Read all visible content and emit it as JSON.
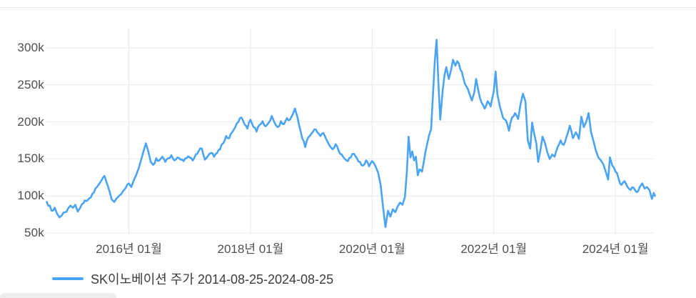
{
  "chart_data": {
    "type": "line",
    "title": "",
    "legend": {
      "label": "SK이노베이션 주가 2014-08-25-2024-08-25",
      "position": "bottom-left"
    },
    "colors": {
      "line": "#4BA4F2",
      "grid": "#e9e9e9",
      "tick_text": "#4f4f4f",
      "legend_text": "#3c3c3c"
    },
    "grid": true,
    "x_range": [
      2014.648,
      2024.66
    ],
    "y_range": [
      50000,
      325000
    ],
    "x_ticks": [
      {
        "t": 2016,
        "label": "2016년 01월"
      },
      {
        "t": 2018,
        "label": "2018년 01월"
      },
      {
        "t": 2020,
        "label": "2020년 01월"
      },
      {
        "t": 2022,
        "label": "2022년 01월"
      },
      {
        "t": 2024,
        "label": "2024년 01월"
      }
    ],
    "y_ticks": [
      {
        "v": 50000,
        "label": "50k"
      },
      {
        "v": 100000,
        "label": "100k"
      },
      {
        "v": 150000,
        "label": "150k"
      },
      {
        "v": 200000,
        "label": "200k"
      },
      {
        "v": 250000,
        "label": "250k"
      },
      {
        "v": 300000,
        "label": "300k"
      }
    ],
    "series": [
      {
        "name": "SK이노베이션 주가 2014-08-25-2024-08-25",
        "points": [
          [
            2014.65,
            92000
          ],
          [
            2014.7,
            87000
          ],
          [
            2014.73,
            80000
          ],
          [
            2014.78,
            84000
          ],
          [
            2014.82,
            76000
          ],
          [
            2014.86,
            71000
          ],
          [
            2014.9,
            74000
          ],
          [
            2014.95,
            78000
          ],
          [
            2015.0,
            83000
          ],
          [
            2015.04,
            87000
          ],
          [
            2015.08,
            84000
          ],
          [
            2015.12,
            88000
          ],
          [
            2015.16,
            79000
          ],
          [
            2015.2,
            84000
          ],
          [
            2015.25,
            90000
          ],
          [
            2015.3,
            93000
          ],
          [
            2015.35,
            97000
          ],
          [
            2015.4,
            103000
          ],
          [
            2015.45,
            110000
          ],
          [
            2015.5,
            115000
          ],
          [
            2015.55,
            121000
          ],
          [
            2015.6,
            127000
          ],
          [
            2015.64,
            117000
          ],
          [
            2015.68,
            107000
          ],
          [
            2015.72,
            95000
          ],
          [
            2015.76,
            92000
          ],
          [
            2015.8,
            97000
          ],
          [
            2015.85,
            101000
          ],
          [
            2015.9,
            106000
          ],
          [
            2015.95,
            111000
          ],
          [
            2016.0,
            117000
          ],
          [
            2016.04,
            112000
          ],
          [
            2016.08,
            121000
          ],
          [
            2016.12,
            128000
          ],
          [
            2016.16,
            137000
          ],
          [
            2016.2,
            148000
          ],
          [
            2016.24,
            160000
          ],
          [
            2016.28,
            171000
          ],
          [
            2016.32,
            160000
          ],
          [
            2016.36,
            146000
          ],
          [
            2016.4,
            142000
          ],
          [
            2016.45,
            151000
          ],
          [
            2016.5,
            148000
          ],
          [
            2016.55,
            153000
          ],
          [
            2016.6,
            146000
          ],
          [
            2016.65,
            151000
          ],
          [
            2016.7,
            155000
          ],
          [
            2016.75,
            148000
          ],
          [
            2016.8,
            152000
          ],
          [
            2016.85,
            149000
          ],
          [
            2016.9,
            147000
          ],
          [
            2016.95,
            151000
          ],
          [
            2017.0,
            152000
          ],
          [
            2017.05,
            148000
          ],
          [
            2017.1,
            156000
          ],
          [
            2017.15,
            161000
          ],
          [
            2017.2,
            164000
          ],
          [
            2017.25,
            149000
          ],
          [
            2017.3,
            154000
          ],
          [
            2017.35,
            158000
          ],
          [
            2017.4,
            153000
          ],
          [
            2017.45,
            158000
          ],
          [
            2017.5,
            163000
          ],
          [
            2017.55,
            171000
          ],
          [
            2017.6,
            181000
          ],
          [
            2017.65,
            178000
          ],
          [
            2017.7,
            186000
          ],
          [
            2017.75,
            193000
          ],
          [
            2017.8,
            200000
          ],
          [
            2017.85,
            206000
          ],
          [
            2017.9,
            197000
          ],
          [
            2017.95,
            191000
          ],
          [
            2018.0,
            203000
          ],
          [
            2018.05,
            193000
          ],
          [
            2018.1,
            187000
          ],
          [
            2018.15,
            196000
          ],
          [
            2018.2,
            201000
          ],
          [
            2018.25,
            194000
          ],
          [
            2018.3,
            199000
          ],
          [
            2018.35,
            208000
          ],
          [
            2018.4,
            198000
          ],
          [
            2018.45,
            193000
          ],
          [
            2018.5,
            201000
          ],
          [
            2018.55,
            197000
          ],
          [
            2018.6,
            205000
          ],
          [
            2018.65,
            203000
          ],
          [
            2018.7,
            211000
          ],
          [
            2018.73,
            218000
          ],
          [
            2018.77,
            207000
          ],
          [
            2018.8,
            195000
          ],
          [
            2018.85,
            178000
          ],
          [
            2018.9,
            166000
          ],
          [
            2018.95,
            179000
          ],
          [
            2019.0,
            184000
          ],
          [
            2019.05,
            190000
          ],
          [
            2019.1,
            186000
          ],
          [
            2019.15,
            181000
          ],
          [
            2019.2,
            185000
          ],
          [
            2019.25,
            176000
          ],
          [
            2019.3,
            168000
          ],
          [
            2019.35,
            163000
          ],
          [
            2019.4,
            170000
          ],
          [
            2019.45,
            161000
          ],
          [
            2019.5,
            156000
          ],
          [
            2019.55,
            150000
          ],
          [
            2019.6,
            147000
          ],
          [
            2019.65,
            152000
          ],
          [
            2019.7,
            157000
          ],
          [
            2019.75,
            151000
          ],
          [
            2019.8,
            146000
          ],
          [
            2019.85,
            141000
          ],
          [
            2019.9,
            148000
          ],
          [
            2019.95,
            140000
          ],
          [
            2020.0,
            147000
          ],
          [
            2020.05,
            141000
          ],
          [
            2020.1,
            131000
          ],
          [
            2020.14,
            115000
          ],
          [
            2020.18,
            85000
          ],
          [
            2020.22,
            58000
          ],
          [
            2020.26,
            80000
          ],
          [
            2020.3,
            72000
          ],
          [
            2020.34,
            82000
          ],
          [
            2020.38,
            78000
          ],
          [
            2020.42,
            86000
          ],
          [
            2020.46,
            91000
          ],
          [
            2020.5,
            88000
          ],
          [
            2020.54,
            99000
          ],
          [
            2020.57,
            132000
          ],
          [
            2020.6,
            180000
          ],
          [
            2020.63,
            152000
          ],
          [
            2020.66,
            160000
          ],
          [
            2020.69,
            148000
          ],
          [
            2020.72,
            153000
          ],
          [
            2020.75,
            128000
          ],
          [
            2020.78,
            136000
          ],
          [
            2020.82,
            133000
          ],
          [
            2020.85,
            146000
          ],
          [
            2020.88,
            161000
          ],
          [
            2020.91,
            172000
          ],
          [
            2020.94,
            183000
          ],
          [
            2020.97,
            190000
          ],
          [
            2021.0,
            236000
          ],
          [
            2021.03,
            282000
          ],
          [
            2021.06,
            311000
          ],
          [
            2021.09,
            252000
          ],
          [
            2021.12,
            203000
          ],
          [
            2021.16,
            242000
          ],
          [
            2021.19,
            263000
          ],
          [
            2021.22,
            274000
          ],
          [
            2021.26,
            258000
          ],
          [
            2021.3,
            271000
          ],
          [
            2021.33,
            284000
          ],
          [
            2021.37,
            276000
          ],
          [
            2021.4,
            282000
          ],
          [
            2021.45,
            271000
          ],
          [
            2021.5,
            259000
          ],
          [
            2021.55,
            248000
          ],
          [
            2021.6,
            238000
          ],
          [
            2021.64,
            229000
          ],
          [
            2021.68,
            240000
          ],
          [
            2021.71,
            258000
          ],
          [
            2021.75,
            241000
          ],
          [
            2021.8,
            226000
          ],
          [
            2021.85,
            218000
          ],
          [
            2021.9,
            228000
          ],
          [
            2021.95,
            221000
          ],
          [
            2022.0,
            241000
          ],
          [
            2022.03,
            268000
          ],
          [
            2022.06,
            237000
          ],
          [
            2022.1,
            221000
          ],
          [
            2022.15,
            206000
          ],
          [
            2022.2,
            202000
          ],
          [
            2022.25,
            188000
          ],
          [
            2022.3,
            206000
          ],
          [
            2022.35,
            212000
          ],
          [
            2022.4,
            204000
          ],
          [
            2022.44,
            224000
          ],
          [
            2022.48,
            238000
          ],
          [
            2022.52,
            228000
          ],
          [
            2022.56,
            175000
          ],
          [
            2022.6,
            164000
          ],
          [
            2022.63,
            199000
          ],
          [
            2022.66,
            186000
          ],
          [
            2022.7,
            171000
          ],
          [
            2022.73,
            146000
          ],
          [
            2022.77,
            163000
          ],
          [
            2022.8,
            180000
          ],
          [
            2022.84,
            172000
          ],
          [
            2022.88,
            159000
          ],
          [
            2022.92,
            150000
          ],
          [
            2022.96,
            156000
          ],
          [
            2023.0,
            153000
          ],
          [
            2023.05,
            166000
          ],
          [
            2023.1,
            175000
          ],
          [
            2023.15,
            169000
          ],
          [
            2023.2,
            181000
          ],
          [
            2023.25,
            195000
          ],
          [
            2023.3,
            178000
          ],
          [
            2023.35,
            186000
          ],
          [
            2023.4,
            177000
          ],
          [
            2023.44,
            207000
          ],
          [
            2023.48,
            193000
          ],
          [
            2023.52,
            200000
          ],
          [
            2023.56,
            212000
          ],
          [
            2023.6,
            186000
          ],
          [
            2023.64,
            174000
          ],
          [
            2023.68,
            161000
          ],
          [
            2023.72,
            152000
          ],
          [
            2023.76,
            148000
          ],
          [
            2023.8,
            143000
          ],
          [
            2023.84,
            133000
          ],
          [
            2023.88,
            122000
          ],
          [
            2023.91,
            152000
          ],
          [
            2023.95,
            141000
          ],
          [
            2024.0,
            133000
          ],
          [
            2024.05,
            124000
          ],
          [
            2024.1,
            115000
          ],
          [
            2024.15,
            120000
          ],
          [
            2024.2,
            112000
          ],
          [
            2024.25,
            108000
          ],
          [
            2024.3,
            111000
          ],
          [
            2024.35,
            105000
          ],
          [
            2024.4,
            112000
          ],
          [
            2024.44,
            117000
          ],
          [
            2024.48,
            110000
          ],
          [
            2024.52,
            112000
          ],
          [
            2024.56,
            108000
          ],
          [
            2024.6,
            96000
          ],
          [
            2024.63,
            104000
          ],
          [
            2024.65,
            100000
          ]
        ]
      }
    ]
  }
}
